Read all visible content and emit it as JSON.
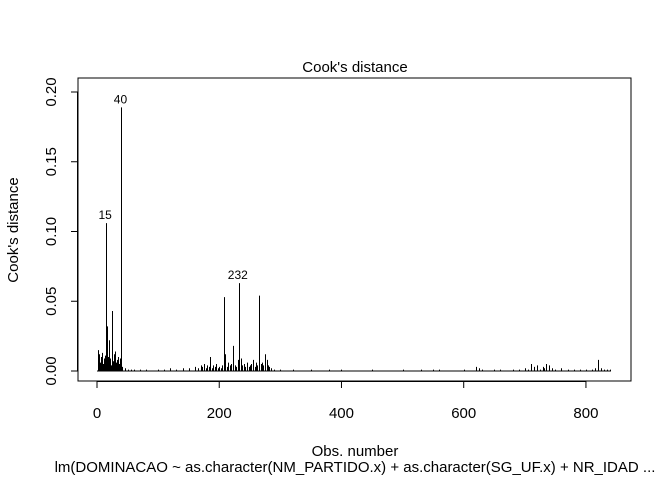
{
  "chart_data": {
    "type": "bar",
    "title": "Cook's distance",
    "xlabel": "Obs. number",
    "ylabel": "Cook's distance",
    "subtitle": "lm(DOMINACAO ~ as.character(NM_PARTIDO.x) + as.character(SG_UF.x) + NR_IDAD ...",
    "xlim": [
      0,
      841
    ],
    "ylim": [
      0,
      0.2
    ],
    "x_ticks": [
      0,
      200,
      400,
      600,
      800
    ],
    "x_tick_labels": [
      "0",
      "200",
      "400",
      "600",
      "800"
    ],
    "y_ticks": [
      0.0,
      0.05,
      0.1,
      0.15,
      0.2
    ],
    "y_tick_labels": [
      "0.00",
      "0.05",
      "0.10",
      "0.15",
      "0.20"
    ],
    "labeled_points": [
      {
        "label": "15",
        "x": 15,
        "y": 0.106
      },
      {
        "label": "40",
        "x": 40,
        "y": 0.189
      },
      {
        "label": "232",
        "x": 232,
        "y": 0.063
      }
    ],
    "x": [
      1,
      2,
      3,
      4,
      5,
      6,
      7,
      8,
      9,
      10,
      11,
      12,
      13,
      14,
      15,
      16,
      17,
      18,
      19,
      20,
      21,
      22,
      23,
      24,
      25,
      26,
      27,
      28,
      29,
      30,
      31,
      32,
      33,
      34,
      35,
      36,
      37,
      38,
      39,
      40,
      41,
      45,
      50,
      55,
      60,
      70,
      80,
      100,
      110,
      120,
      130,
      140,
      150,
      160,
      165,
      170,
      172,
      175,
      178,
      180,
      183,
      185,
      188,
      190,
      193,
      195,
      198,
      200,
      203,
      205,
      208,
      210,
      212,
      215,
      218,
      220,
      222,
      225,
      228,
      230,
      232,
      235,
      238,
      240,
      242,
      245,
      248,
      250,
      252,
      255,
      258,
      260,
      262,
      265,
      268,
      270,
      272,
      275,
      278,
      280,
      282,
      285,
      290,
      300,
      320,
      350,
      380,
      400,
      450,
      500,
      530,
      550,
      560,
      600,
      620,
      625,
      630,
      650,
      660,
      680,
      690,
      700,
      705,
      710,
      715,
      720,
      725,
      730,
      732,
      735,
      740,
      745,
      750,
      760,
      770,
      780,
      790,
      800,
      810,
      815,
      820,
      825,
      830,
      835,
      840
    ],
    "values": [
      0.003,
      0.015,
      0.004,
      0.012,
      0.006,
      0.01,
      0.008,
      0.013,
      0.005,
      0.004,
      0.009,
      0.007,
      0.011,
      0.006,
      0.106,
      0.032,
      0.008,
      0.01,
      0.005,
      0.022,
      0.006,
      0.009,
      0.004,
      0.043,
      0.018,
      0.007,
      0.012,
      0.005,
      0.009,
      0.014,
      0.006,
      0.008,
      0.003,
      0.01,
      0.007,
      0.005,
      0.009,
      0.004,
      0.012,
      0.189,
      0.003,
      0.002,
      0.001,
      0.001,
      0.001,
      0.001,
      0.001,
      0.001,
      0.001,
      0.002,
      0.001,
      0.002,
      0.002,
      0.003,
      0.002,
      0.004,
      0.003,
      0.005,
      0.002,
      0.004,
      0.003,
      0.01,
      0.002,
      0.004,
      0.003,
      0.005,
      0.002,
      0.003,
      0.002,
      0.004,
      0.053,
      0.012,
      0.003,
      0.006,
      0.004,
      0.005,
      0.018,
      0.004,
      0.003,
      0.008,
      0.063,
      0.009,
      0.004,
      0.005,
      0.003,
      0.006,
      0.003,
      0.004,
      0.005,
      0.008,
      0.003,
      0.006,
      0.004,
      0.054,
      0.005,
      0.006,
      0.004,
      0.012,
      0.008,
      0.004,
      0.003,
      0.002,
      0.001,
      0.001,
      0.001,
      0.001,
      0.001,
      0.001,
      0.001,
      0.001,
      0.001,
      0.001,
      0.001,
      0.001,
      0.003,
      0.002,
      0.001,
      0.001,
      0.001,
      0.001,
      0.001,
      0.002,
      0.001,
      0.005,
      0.003,
      0.004,
      0.001,
      0.003,
      0.002,
      0.005,
      0.004,
      0.002,
      0.001,
      0.002,
      0.001,
      0.001,
      0.001,
      0.001,
      0.001,
      0.002,
      0.008,
      0.002,
      0.001,
      0.001,
      0.001
    ]
  }
}
